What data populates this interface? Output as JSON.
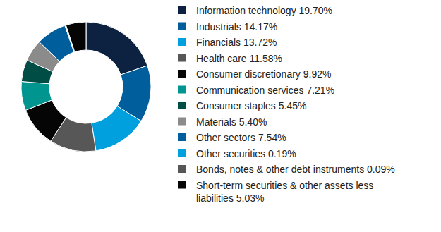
{
  "chart_data": {
    "type": "pie",
    "categories": [
      "Information technology",
      "Industrials",
      "Financials",
      "Health care",
      "Consumer discretionary",
      "Communication services",
      "Consumer staples",
      "Materials",
      "Other sectors",
      "Other securities",
      "Bonds, notes & other debt instruments",
      "Short-term securities & other assets less liabilities"
    ],
    "values": [
      19.7,
      14.17,
      13.72,
      11.58,
      9.92,
      7.21,
      5.45,
      5.4,
      7.54,
      0.19,
      0.09,
      5.03
    ],
    "value_labels": [
      "19.70%",
      "14.17%",
      "13.72%",
      "11.58%",
      "9.92%",
      "7.21%",
      "5.45%",
      "5.40%",
      "7.54%",
      "0.19%",
      "0.09%",
      "5.03%"
    ],
    "colors": [
      "#0d2240",
      "#005e9c",
      "#00a0df",
      "#575757",
      "#050505",
      "#00968f",
      "#004d45",
      "#8b8b8b",
      "#005e9c",
      "#00a0df",
      "#575757",
      "#050505"
    ],
    "legend": "right"
  }
}
